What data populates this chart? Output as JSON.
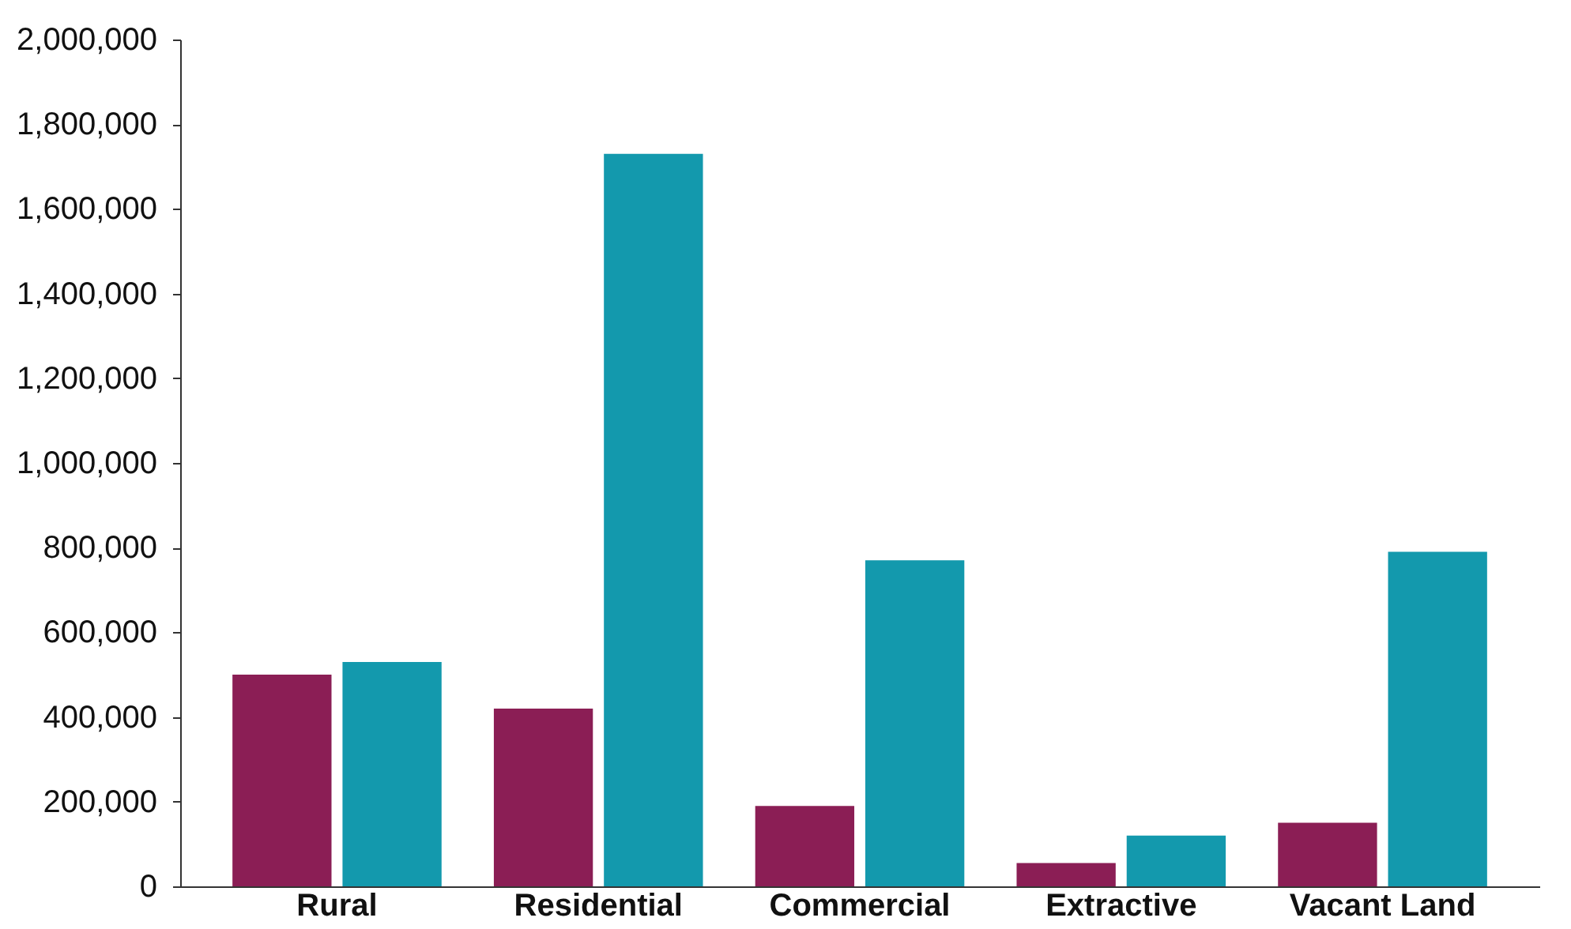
{
  "chart_data": {
    "type": "bar",
    "categories": [
      "Rural",
      "Residential",
      "Commercial",
      "Extractive",
      "Vacant Land"
    ],
    "series": [
      {
        "color": "#8b1e55",
        "values": [
          500000,
          420000,
          190000,
          55000,
          150000
        ]
      },
      {
        "color": "#1399ad",
        "values": [
          530000,
          1730000,
          770000,
          120000,
          790000
        ]
      }
    ],
    "ylim": [
      0,
      2000000
    ],
    "yticks": [
      0,
      {
        "value": 200000,
        "label": "200,000"
      },
      {
        "value": 400000,
        "label": "400,000"
      },
      {
        "value": 600000,
        "label": "600,000"
      },
      {
        "value": 800000,
        "label": "800,000"
      },
      {
        "value": 1000000,
        "label": "1,000,000"
      },
      {
        "value": 1200000,
        "label": "1,200,000"
      },
      {
        "value": 1400000,
        "label": "1,400,000"
      },
      {
        "value": 1600000,
        "label": "1,600,000"
      },
      {
        "value": 1800000,
        "label": "1,800,000"
      },
      {
        "value": 2000000,
        "label": "2,000,000"
      }
    ],
    "grid": false,
    "legend": false
  }
}
